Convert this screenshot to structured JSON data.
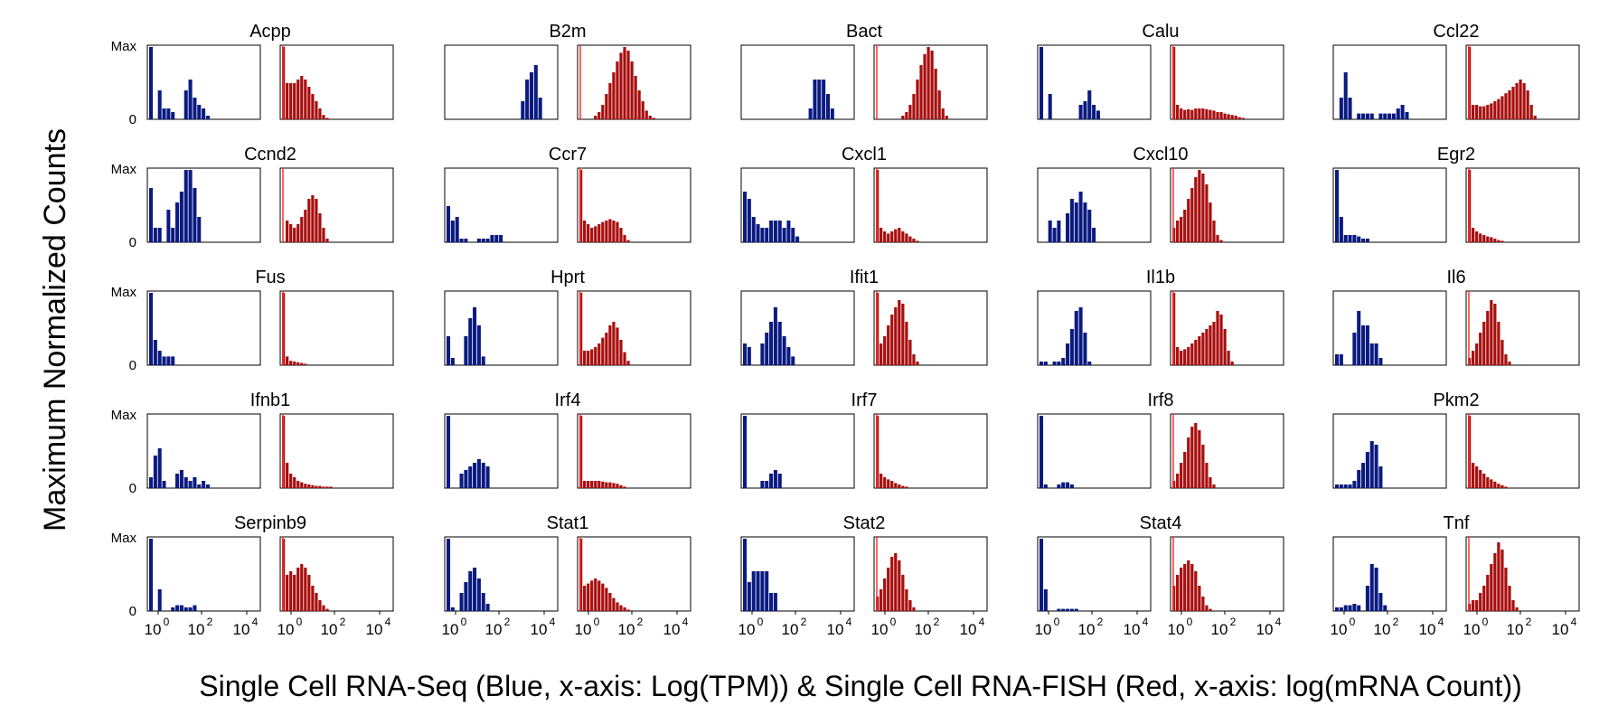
{
  "figure": {
    "ylabel": "Maximum Normalized Counts",
    "xlabel": "Single Cell RNA-Seq (Blue, x-axis: Log(TPM)) & Single Cell RNA-FISH (Red, x-axis: log(mRNA Count))",
    "y_tick_max": "Max",
    "y_tick_zero": "0",
    "x_tick_labels": [
      "10",
      "10",
      "10"
    ],
    "x_tick_exponents": [
      "0",
      "2",
      "4"
    ],
    "colors": {
      "seq": "#0a1a80",
      "fish": "#a80e0e",
      "fish_line": "#ff3030"
    }
  },
  "chart_data": {
    "type": "bar",
    "subtype": "histogram-grid",
    "x_axis_log10_range": [
      -0.8,
      4.8
    ],
    "y_axis": "normalized 0..1 (Max)",
    "genes": [
      {
        "name": "Acpp",
        "seq": [
          1,
          0,
          0.4,
          0.15,
          0.15,
          0.1,
          0,
          0,
          0.4,
          0.55,
          0.3,
          0.2,
          0.15,
          0.05,
          0,
          0,
          0,
          0,
          0,
          0,
          0,
          0,
          0,
          0,
          0
        ],
        "fish": [
          1,
          0.5,
          0.5,
          0.5,
          0.55,
          0.6,
          0.55,
          0.45,
          0.35,
          0.25,
          0.15,
          0.06,
          0.02,
          0,
          0,
          0,
          0,
          0,
          0,
          0,
          0,
          0,
          0,
          0,
          0,
          0,
          0,
          0,
          0,
          0
        ]
      },
      {
        "name": "B2m",
        "seq": [
          0,
          0,
          0,
          0,
          0,
          0,
          0,
          0,
          0,
          0,
          0,
          0,
          0,
          0,
          0,
          0,
          0,
          0.25,
          0.55,
          0.65,
          0.75,
          0.3,
          0,
          0,
          0
        ],
        "fish": [
          0,
          0,
          0,
          0,
          0.05,
          0.1,
          0.2,
          0.35,
          0.5,
          0.65,
          0.8,
          0.92,
          1,
          0.95,
          0.8,
          0.6,
          0.4,
          0.25,
          0.12,
          0.05,
          0.02,
          0,
          0,
          0,
          0,
          0,
          0,
          0,
          0,
          0
        ]
      },
      {
        "name": "Bact",
        "seq": [
          0,
          0,
          0,
          0,
          0,
          0,
          0,
          0,
          0,
          0,
          0,
          0,
          0,
          0,
          0,
          0.15,
          0.55,
          0.55,
          0.55,
          0.35,
          0.15,
          0,
          0,
          0,
          0
        ],
        "fish": [
          0,
          0,
          0,
          0,
          0,
          0,
          0,
          0.05,
          0.1,
          0.2,
          0.35,
          0.55,
          0.75,
          0.9,
          1,
          0.95,
          0.7,
          0.4,
          0.15,
          0.05,
          0,
          0,
          0,
          0,
          0,
          0,
          0,
          0,
          0,
          0
        ]
      },
      {
        "name": "Calu",
        "seq": [
          1,
          0,
          0.35,
          0,
          0,
          0,
          0,
          0,
          0,
          0.2,
          0.25,
          0.4,
          0.2,
          0.12,
          0,
          0,
          0,
          0,
          0,
          0,
          0,
          0,
          0,
          0,
          0
        ],
        "fish": [
          1,
          0.2,
          0.15,
          0.13,
          0.14,
          0.13,
          0.15,
          0.15,
          0.15,
          0.14,
          0.13,
          0.12,
          0.1,
          0.1,
          0.08,
          0.07,
          0.06,
          0.05,
          0.03,
          0.02,
          0,
          0,
          0,
          0,
          0,
          0,
          0,
          0,
          0,
          0
        ]
      },
      {
        "name": "Ccl22",
        "seq": [
          0,
          0.3,
          0.65,
          0.3,
          0,
          0.08,
          0.08,
          0.08,
          0.08,
          0,
          0.08,
          0.08,
          0.08,
          0.08,
          0.15,
          0.2,
          0.1,
          0,
          0,
          0,
          0,
          0,
          0,
          0,
          0
        ],
        "fish": [
          1,
          0.2,
          0.2,
          0.18,
          0.18,
          0.2,
          0.22,
          0.25,
          0.28,
          0.32,
          0.36,
          0.4,
          0.45,
          0.5,
          0.55,
          0.5,
          0.4,
          0.2,
          0.05,
          0,
          0,
          0,
          0,
          0,
          0,
          0,
          0,
          0,
          0,
          0
        ]
      }
    ]
  }
}
